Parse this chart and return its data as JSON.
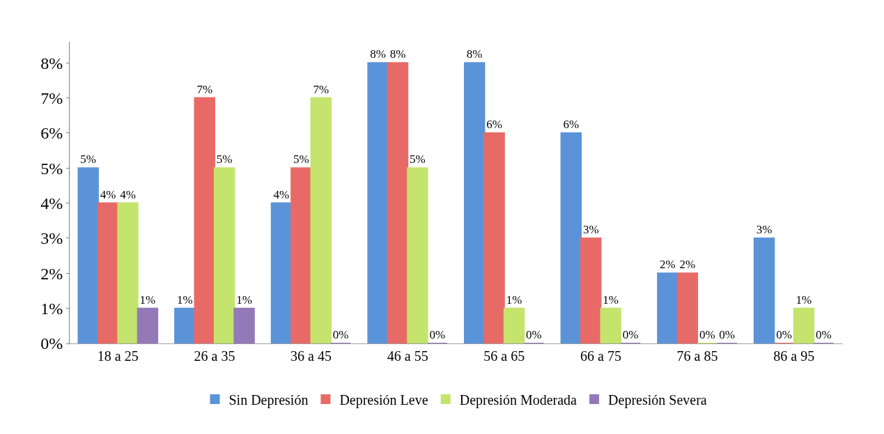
{
  "chart_data": {
    "type": "bar",
    "categories": [
      "18 a 25",
      "26 a 35",
      "36 a 45",
      "46 a 55",
      "56 a 65",
      "66 a 75",
      "76 a 85",
      "86 a 95"
    ],
    "series": [
      {
        "name": "Sin Depresión",
        "color": "#5b93d9",
        "values": [
          5,
          1,
          4,
          8,
          8,
          6,
          2,
          3
        ],
        "value_labels": [
          "5%",
          "1%",
          "4%",
          "8%",
          "8%",
          "6%",
          "2%",
          "3%"
        ]
      },
      {
        "name": "Depresión Leve",
        "color": "#e86a67",
        "values": [
          4,
          7,
          5,
          8,
          6,
          3,
          2,
          0
        ],
        "value_labels": [
          "4%",
          "7%",
          "5%",
          "8%",
          "6%",
          "3%",
          "2%",
          "0%"
        ]
      },
      {
        "name": "Depresión Moderada",
        "color": "#c4e46d",
        "values": [
          4,
          5,
          7,
          5,
          1,
          1,
          0,
          1
        ],
        "value_labels": [
          "4%",
          "5%",
          "7%",
          "5%",
          "1%",
          "1%",
          "0%",
          "1%"
        ]
      },
      {
        "name": "Depresión Severa",
        "color": "#9479b8",
        "values": [
          1,
          1,
          0,
          0,
          0,
          0,
          0,
          0
        ],
        "value_labels": [
          "1%",
          "1%",
          "0%",
          "0%",
          "0%",
          "0%",
          "0%",
          "0%"
        ]
      }
    ],
    "ylim": [
      0,
      8.6
    ],
    "yticks": [
      {
        "value": 0,
        "label": "0%"
      },
      {
        "value": 1,
        "label": "1%"
      },
      {
        "value": 2,
        "label": "2%"
      },
      {
        "value": 3,
        "label": "3%"
      },
      {
        "value": 4,
        "label": "4%"
      },
      {
        "value": 5,
        "label": "5%"
      },
      {
        "value": 6,
        "label": "6%"
      },
      {
        "value": 7,
        "label": "7%"
      },
      {
        "value": 8,
        "label": "8%"
      }
    ],
    "legend": "bottom"
  }
}
